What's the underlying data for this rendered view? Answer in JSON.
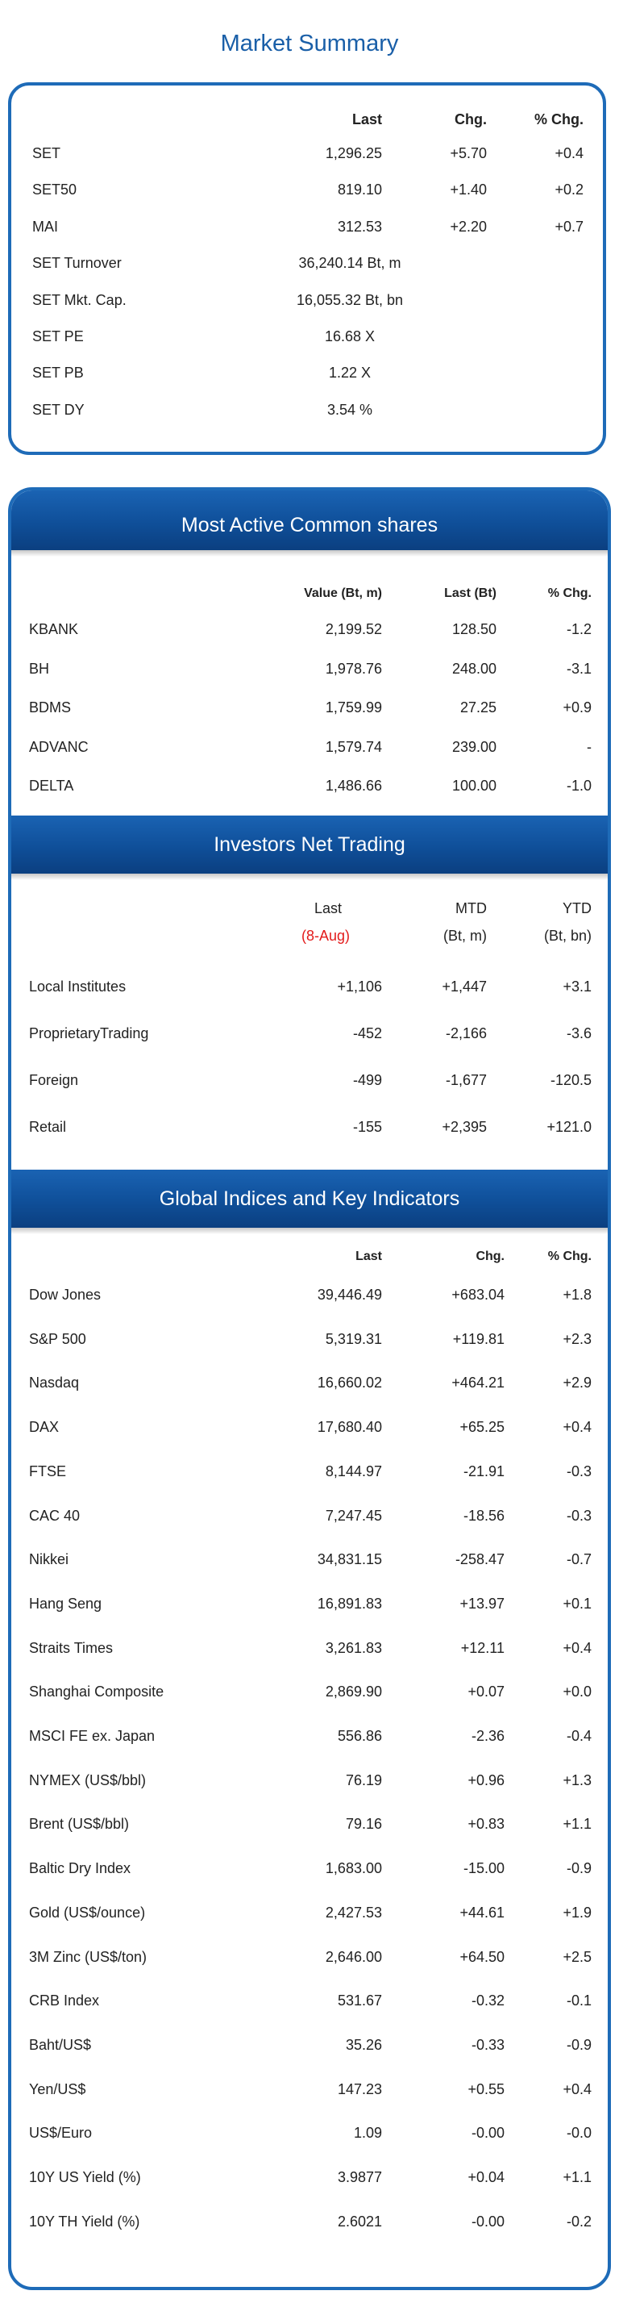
{
  "title": "Market Summary",
  "summary": {
    "headers": [
      "Last",
      "Chg.",
      "% Chg."
    ],
    "rows": [
      {
        "name": "SET",
        "last": "1,296.25",
        "chg": "+5.70",
        "pct": "+0.4"
      },
      {
        "name": "SET50",
        "last": "819.10",
        "chg": "+1.40",
        "pct": "+0.2"
      },
      {
        "name": "MAI",
        "last": "312.53",
        "chg": "+2.20",
        "pct": "+0.7"
      },
      {
        "name": "SET Turnover",
        "last": "36,240.14 Bt, m",
        "chg": "",
        "pct": ""
      },
      {
        "name": "SET Mkt. Cap.",
        "last": "16,055.32 Bt, bn",
        "chg": "",
        "pct": ""
      },
      {
        "name": "SET PE",
        "last": "16.68 X",
        "chg": "",
        "pct": ""
      },
      {
        "name": "SET PB",
        "last": "1.22 X",
        "chg": "",
        "pct": ""
      },
      {
        "name": "SET DY",
        "last": "3.54 %",
        "chg": "",
        "pct": ""
      }
    ]
  },
  "most_active": {
    "title": "Most Active Common shares",
    "headers": [
      "Value (Bt, m)",
      "Last (Bt)",
      "% Chg."
    ],
    "rows": [
      {
        "name": "KBANK",
        "value": "2,199.52",
        "last": "128.50",
        "pct": "-1.2"
      },
      {
        "name": "BH",
        "value": "1,978.76",
        "last": "248.00",
        "pct": "-3.1"
      },
      {
        "name": "BDMS",
        "value": "1,759.99",
        "last": "27.25",
        "pct": "+0.9"
      },
      {
        "name": "ADVANC",
        "value": "1,579.74",
        "last": "239.00",
        "pct": "-"
      },
      {
        "name": "DELTA",
        "value": "1,486.66",
        "last": "100.00",
        "pct": "-1.0"
      }
    ]
  },
  "investors": {
    "title": "Investors Net Trading",
    "headers": [
      "Last",
      "MTD",
      "YTD"
    ],
    "subheaders": [
      "(8-Aug)",
      "(Bt, m)",
      "(Bt, bn)"
    ],
    "rows": [
      {
        "name": "Local Institutes",
        "last": "+1,106",
        "mtd": "+1,447",
        "ytd": "+3.1"
      },
      {
        "name": "ProprietaryTrading",
        "last": "-452",
        "mtd": "-2,166",
        "ytd": "-3.6"
      },
      {
        "name": "Foreign",
        "last": "-499",
        "mtd": "-1,677",
        "ytd": "-120.5"
      },
      {
        "name": "Retail",
        "last": "-155",
        "mtd": "+2,395",
        "ytd": "+121.0"
      }
    ]
  },
  "global": {
    "title": "Global Indices and Key Indicators",
    "headers": [
      "Last",
      "Chg.",
      "% Chg."
    ],
    "rows": [
      {
        "name": "Dow Jones",
        "last": "39,446.49",
        "chg": "+683.04",
        "pct": "+1.8"
      },
      {
        "name": "S&P 500",
        "last": "5,319.31",
        "chg": "+119.81",
        "pct": "+2.3"
      },
      {
        "name": "Nasdaq",
        "last": "16,660.02",
        "chg": "+464.21",
        "pct": "+2.9"
      },
      {
        "name": "DAX",
        "last": "17,680.40",
        "chg": "+65.25",
        "pct": "+0.4"
      },
      {
        "name": "FTSE",
        "last": "8,144.97",
        "chg": "-21.91",
        "pct": "-0.3"
      },
      {
        "name": "CAC 40",
        "last": "7,247.45",
        "chg": "-18.56",
        "pct": "-0.3"
      },
      {
        "name": "Nikkei",
        "last": "34,831.15",
        "chg": "-258.47",
        "pct": "-0.7"
      },
      {
        "name": "Hang Seng",
        "last": "16,891.83",
        "chg": "+13.97",
        "pct": "+0.1"
      },
      {
        "name": "Straits Times",
        "last": "3,261.83",
        "chg": "+12.11",
        "pct": "+0.4"
      },
      {
        "name": "Shanghai Composite",
        "last": "2,869.90",
        "chg": "+0.07",
        "pct": "+0.0"
      },
      {
        "name": "MSCI FE ex. Japan",
        "last": "556.86",
        "chg": "-2.36",
        "pct": "-0.4"
      },
      {
        "name": "NYMEX (US$/bbl)",
        "last": "76.19",
        "chg": "+0.96",
        "pct": "+1.3"
      },
      {
        "name": "Brent (US$/bbl)",
        "last": "79.16",
        "chg": "+0.83",
        "pct": "+1.1"
      },
      {
        "name": "Baltic Dry Index",
        "last": "1,683.00",
        "chg": "-15.00",
        "pct": "-0.9"
      },
      {
        "name": "Gold (US$/ounce)",
        "last": "2,427.53",
        "chg": "+44.61",
        "pct": "+1.9"
      },
      {
        "name": "3M Zinc (US$/ton)",
        "last": "2,646.00",
        "chg": "+64.50",
        "pct": "+2.5"
      },
      {
        "name": "CRB Index",
        "last": "531.67",
        "chg": "-0.32",
        "pct": "-0.1"
      },
      {
        "name": "Baht/US$",
        "last": "35.26",
        "chg": "-0.33",
        "pct": "-0.9"
      },
      {
        "name": "Yen/US$",
        "last": "147.23",
        "chg": "+0.55",
        "pct": "+0.4"
      },
      {
        "name": "US$/Euro",
        "last": "1.09",
        "chg": "-0.00",
        "pct": "-0.0"
      },
      {
        "name": "10Y US Yield (%)",
        "last": "3.9877",
        "chg": "+0.04",
        "pct": "+1.1"
      },
      {
        "name": "10Y TH Yield (%)",
        "last": "2.6021",
        "chg": "-0.00",
        "pct": "-0.2"
      }
    ]
  },
  "colors": {
    "accent": "#1e6bb8",
    "band": "#0f4f99",
    "date_red": "#e31b1b"
  }
}
